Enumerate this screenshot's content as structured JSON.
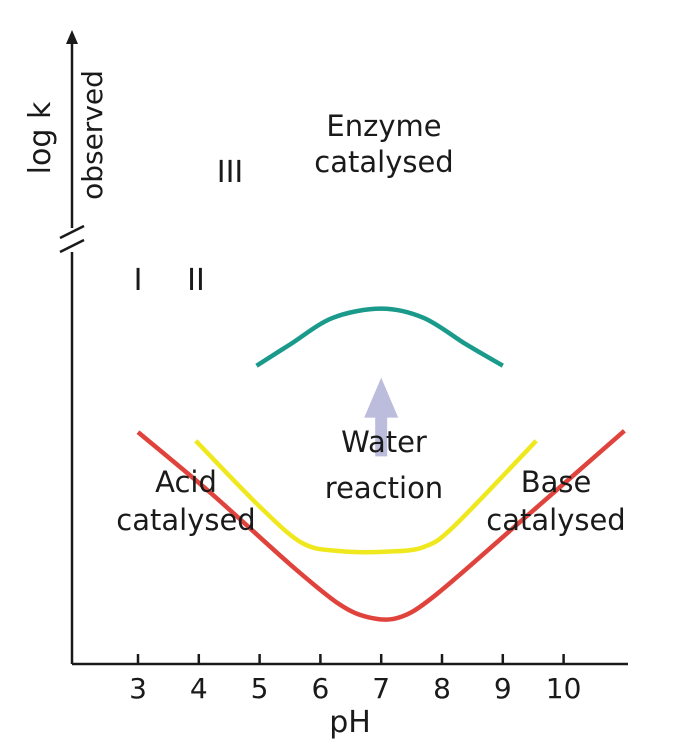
{
  "chart_data": {
    "type": "line",
    "title": "",
    "xlabel": "pH",
    "ylabel": "log k",
    "ylabel_sub": "observed",
    "x_ticks": [
      3,
      4,
      5,
      6,
      7,
      8,
      9,
      10
    ],
    "xlim": [
      2,
      11.1
    ],
    "ylim": [
      0,
      10
    ],
    "y_axis_break": true,
    "grid": false,
    "series": [
      {
        "name": "I",
        "color": "#e0433c",
        "x": [
          3.0,
          4.2,
          5.5,
          6.3,
          6.8,
          7.3,
          7.9,
          9.3,
          11.0
        ],
        "y": [
          5.96,
          4.12,
          1.98,
          0.79,
          0.38,
          0.38,
          1.06,
          3.28,
          6.0
        ]
      },
      {
        "name": "II",
        "color": "#f0e81e",
        "x": [
          3.95,
          5.0,
          5.7,
          6.3,
          7.1,
          7.7,
          8.2,
          9.55
        ],
        "y": [
          5.7,
          3.72,
          2.62,
          2.38,
          2.36,
          2.5,
          3.13,
          5.7
        ]
      },
      {
        "name": "III",
        "color": "#1a9a8a",
        "x": [
          4.95,
          5.5,
          6.2,
          7.0,
          7.7,
          8.4,
          9.0
        ],
        "y": [
          7.96,
          8.6,
          9.4,
          9.68,
          9.4,
          8.6,
          7.96
        ]
      }
    ],
    "curve_labels": [
      "I",
      "II",
      "III"
    ],
    "annotations": {
      "enzyme": [
        "Enzyme",
        "catalysed"
      ],
      "water": [
        "Water",
        "reaction"
      ],
      "acid": [
        "Acid",
        "catalysed"
      ],
      "base": [
        "Base",
        "catalysed"
      ]
    },
    "arrow": {
      "x": 7.0,
      "y_from": 5.23,
      "y_to": 7.6,
      "color": "#bcbcdc"
    }
  }
}
